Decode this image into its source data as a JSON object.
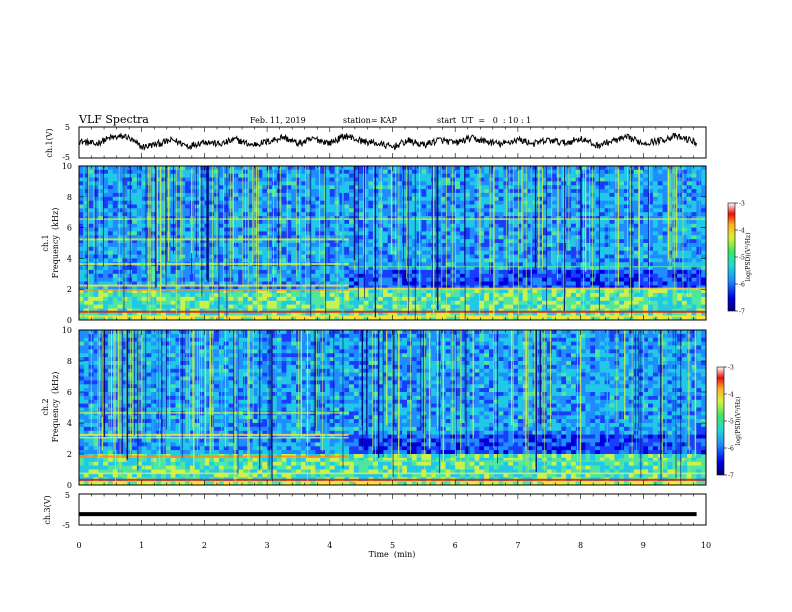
{
  "header": {
    "title": "VLF Spectra",
    "date": "Feb. 11, 2019",
    "station": "station= KAP",
    "start": "start  UT  =   0  : 10 : 1"
  },
  "colors": {
    "frame": "#000000",
    "spectrogram_palette": [
      "#00007a",
      "#0000d8",
      "#1a3cff",
      "#1f8cff",
      "#21c8e8",
      "#4fe6a0",
      "#c9f24a",
      "#ffe23a",
      "#ff8a1a",
      "#e81010",
      "#ffffff"
    ]
  },
  "chart_data": [
    {
      "type": "line",
      "ylabel": "ch.1(V)",
      "ylim": [
        -5,
        5
      ],
      "yticks": [
        "5",
        "-5"
      ],
      "xlim": [
        0,
        10
      ],
      "x_unit": "min",
      "series": [
        {
          "x": [
            0,
            0.25,
            0.5,
            0.75,
            1,
            1.25,
            1.5,
            1.75,
            2,
            2.25,
            2.5,
            2.75,
            3,
            3.25,
            3.5,
            3.75,
            4,
            4.25,
            4.5,
            4.75,
            5,
            5.25,
            5.5,
            5.75,
            6,
            6.25,
            6.5,
            6.75,
            7,
            7.25,
            7.5,
            7.75,
            8,
            8.25,
            8.5,
            8.75,
            9,
            9.25,
            9.5,
            9.75,
            9.85
          ],
          "values": [
            0.5,
            -0.5,
            1.5,
            2.0,
            -1.5,
            -0.5,
            0.8,
            -1.2,
            0.4,
            -0.6,
            1.0,
            -0.8,
            0.2,
            1.8,
            -0.4,
            1.2,
            -0.2,
            2.2,
            0.5,
            -0.3,
            -1.5,
            0.6,
            -0.8,
            0.9,
            -0.2,
            1.4,
            0.3,
            -0.6,
            1.0,
            -0.4,
            0.8,
            -0.2,
            1.3,
            -1.0,
            0.4,
            1.6,
            -0.2,
            0.6,
            2.0,
            0.8,
            -0.2
          ]
        }
      ]
    },
    {
      "type": "heatmap",
      "ylabel": "ch.1",
      "ylabel2": "Frequency  (kHz)",
      "ylim": [
        0,
        10
      ],
      "yticks": [
        "0",
        "2",
        "4",
        "6",
        "8",
        "10"
      ],
      "xlim": [
        0,
        10
      ],
      "colorbar": {
        "label": "log(PSD)(V²/Hz)",
        "range": [
          -7,
          -3
        ],
        "ticks": [
          "-3",
          "-4",
          "-5",
          "-6",
          "-7"
        ]
      }
    },
    {
      "type": "heatmap",
      "ylabel": "ch.2",
      "ylabel2": "Frequency  (kHz)",
      "ylim": [
        0,
        10
      ],
      "yticks": [
        "0",
        "2",
        "4",
        "6",
        "8",
        "10"
      ],
      "xlim": [
        0,
        10
      ],
      "colorbar": {
        "label": "log(PSD)(V²/Hz)",
        "range": [
          -7,
          -3
        ],
        "ticks": [
          "-3",
          "-4",
          "-5",
          "-6",
          "-7"
        ]
      }
    },
    {
      "type": "line",
      "ylabel": "ch.3(V)",
      "ylim": [
        -5,
        5
      ],
      "yticks": [
        "5",
        "-5"
      ],
      "xlim": [
        0,
        10
      ],
      "series": [
        {
          "x": [
            0,
            9.85
          ],
          "values": [
            -1.5,
            -1.5
          ]
        }
      ]
    }
  ],
  "xaxis": {
    "label": "Time  (min)",
    "ticks": [
      "0",
      "1",
      "2",
      "3",
      "4",
      "5",
      "6",
      "7",
      "8",
      "9",
      "10"
    ]
  }
}
